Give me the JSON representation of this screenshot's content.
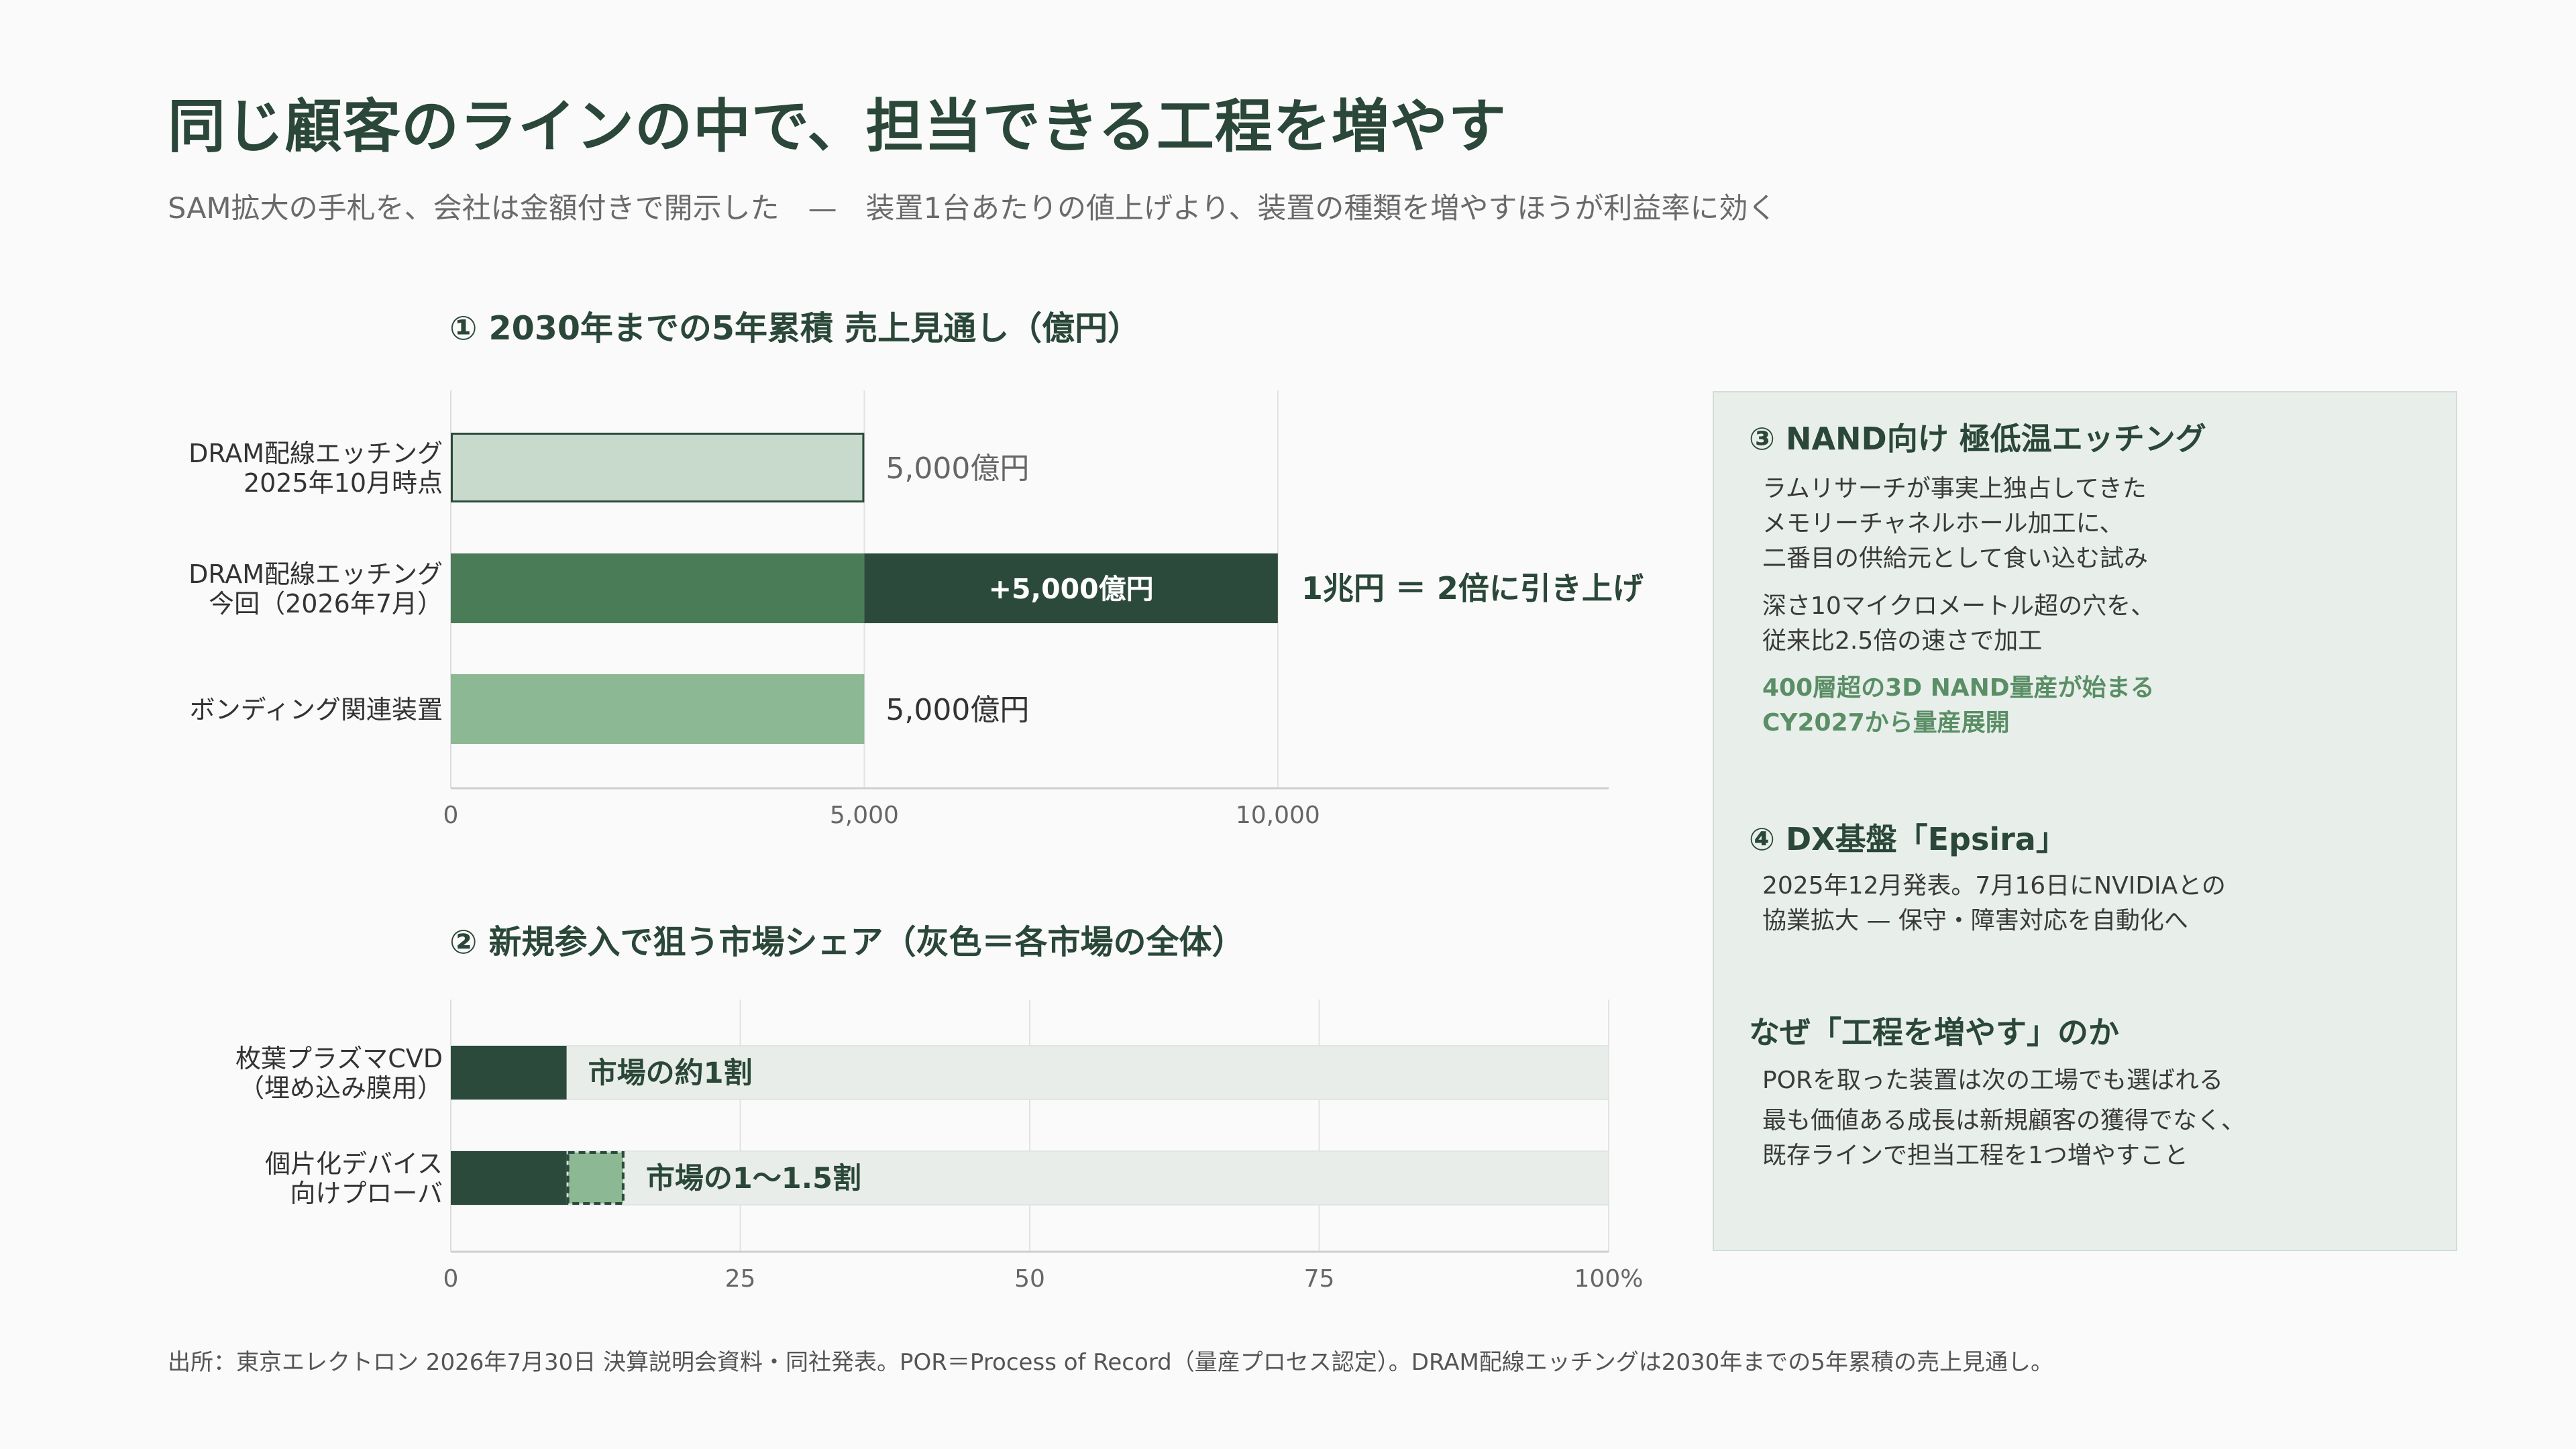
{
  "header": {
    "title": "同じ顧客のラインの中で、担当できる工程を増やす",
    "subtitle": "SAM拡大の手札を、会社は金額付きで開示した　—　装置1台あたりの値上げより、装置の種類を増やすほうが利益率に効く"
  },
  "chart_data": [
    {
      "type": "bar",
      "orientation": "horizontal",
      "title": "① 2030年までの5年累積 売上見通し（億円）",
      "categories": [
        "DRAM配線エッチング\n2025年10月時点",
        "DRAM配線エッチング\n今回（2026年7月）",
        "ボンディング関連装置"
      ],
      "series": [
        {
          "values": [
            5000,
            5000,
            5000
          ],
          "colors": [
            "#c7dacb",
            "#4a7c58",
            "#8cb894"
          ]
        },
        {
          "values": [
            0,
            5000,
            0
          ],
          "colors": [
            "#2c4a3c",
            "#2c4a3c",
            "#2c4a3c"
          ]
        }
      ],
      "data_labels": [
        "5,000億円",
        "+5,000億円",
        "5,000億円"
      ],
      "annotation": "1兆円 ＝ 2倍に引き上げ",
      "xlim": [
        0,
        14000
      ],
      "xticks": [
        0,
        5000,
        10000
      ],
      "xtick_labels": [
        "0",
        "5,000",
        "10,000"
      ],
      "grid": true
    },
    {
      "type": "bar",
      "orientation": "horizontal",
      "stacked": true,
      "title": "② 新規参入で狙う市場シェア（灰色＝各市場の全体）",
      "categories": [
        "枚葉プラズマCVD\n（埋め込み膜用）",
        "個片化デバイス\n向けプローバ"
      ],
      "series": [
        {
          "values": [
            10,
            10
          ],
          "color": "#2c4a3c"
        },
        {
          "values": [
            0,
            5
          ],
          "color": "#8cb894"
        },
        {
          "values": [
            90,
            85
          ],
          "color": "#e8ede9"
        }
      ],
      "data_labels": [
        "市場の約1割",
        "市場の1〜1.5割"
      ],
      "xlim": [
        0,
        100
      ],
      "xticks": [
        0,
        25,
        50,
        75,
        100
      ],
      "xtick_labels": [
        "0",
        "25",
        "50",
        "75",
        "100%"
      ],
      "grid": true
    }
  ],
  "panel": {
    "nand_title": "③ NAND向け 極低温エッチング",
    "nand_lines_1": [
      "ラムリサーチが事実上独占してきた",
      "メモリーチャネルホール加工に、",
      "二番目の供給元として食い込む試み"
    ],
    "nand_lines_2": [
      "深さ10マイクロメートル超の穴を、",
      "従来比2.5倍の速さで加工"
    ],
    "nand_accent": [
      "400層超の3D NAND量産が始まる",
      "CY2027から量産展開"
    ],
    "dx_title": "④ DX基盤「Epsira」",
    "dx_lines": [
      "2025年12月発表。7月16日にNVIDIAとの",
      "協業拡大 — 保守・障害対応を自動化へ"
    ],
    "why_title": "なぜ「工程を増やす」のか",
    "why_line_1": "PORを取った装置は次の工場でも選ばれる",
    "why_lines_2": [
      "最も価値ある成長は新規顧客の獲得でなく、",
      "既存ラインで担当工程を1つ増やすこと"
    ]
  },
  "footer": {
    "source": "出所：東京エレクトロン 2026年7月30日 決算説明会資料・同社発表。POR＝Process of Record（量産プロセス認定）。DRAM配線エッチングは2030年までの5年累積の売上見通し。"
  },
  "colors": {
    "dark_green": "#2c4a3c",
    "mid_green": "#4a7c58",
    "light_green": "#8cb894",
    "pale_green": "#c7dacb",
    "market_gray": "#e8ede9",
    "panel_bg": "#e8efea",
    "accent_text": "#5a8e66"
  }
}
